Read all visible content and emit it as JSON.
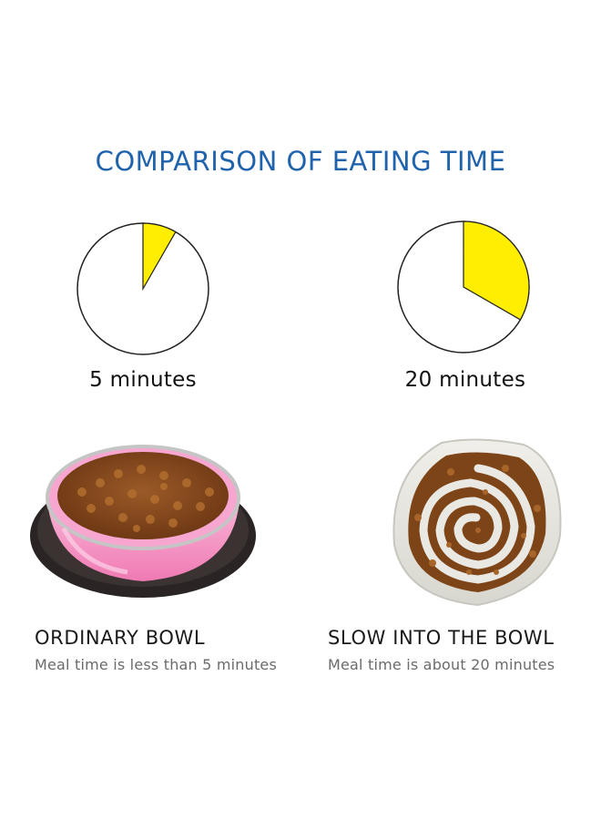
{
  "title": "COMPARISON OF EATING TIME",
  "colors": {
    "title": "#1f63ad",
    "pie_fill": "#ffee00",
    "pink_bowl": "#f49bc8",
    "rim_black": "#2a2424",
    "food": "#8a4b1c",
    "slow_bowl": "#e6e5df"
  },
  "left": {
    "pie_fraction": 0.083,
    "time_label": "5 minutes",
    "bowl_name": "ORDINARY BOWL",
    "description": "Meal time is less than 5 minutes",
    "image": "pink-stainless-bowl-with-kibble"
  },
  "right": {
    "pie_fraction": 0.333,
    "time_label": "20 minutes",
    "bowl_name": "SLOW INTO THE BOWL",
    "description": "Meal time is about 20 minutes",
    "image": "spiral-slow-feeder-bowl-with-kibble"
  }
}
